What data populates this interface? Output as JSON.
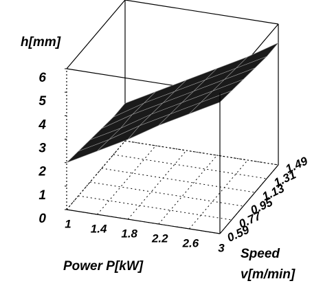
{
  "chart_data": {
    "type": "surface",
    "xlabel": "Power P[kW]",
    "ylabel": [
      "Speed",
      "v[m/min]"
    ],
    "zlabel": "h[mm]",
    "x": [
      1,
      1.4,
      1.8,
      2.2,
      2.6,
      3
    ],
    "y": [
      0.59,
      0.77,
      0.95,
      1.13,
      1.31,
      1.49
    ],
    "z": [
      [
        2.0,
        2.7,
        3.4,
        4.2,
        4.9,
        5.6
      ],
      [
        1.9,
        2.6,
        3.4,
        4.1,
        4.8,
        5.5
      ],
      [
        1.8,
        2.5,
        3.3,
        4.0,
        4.7,
        5.4
      ],
      [
        1.7,
        2.5,
        3.2,
        3.9,
        4.6,
        5.3
      ],
      [
        1.6,
        2.4,
        3.1,
        3.8,
        4.5,
        5.2
      ],
      [
        1.6,
        2.3,
        3.0,
        3.7,
        4.4,
        5.2
      ]
    ],
    "xlim": [
      1,
      3
    ],
    "ylim": [
      0.59,
      1.49
    ],
    "zlim": [
      0,
      6
    ],
    "xticks": [
      1,
      1.4,
      1.8,
      2.2,
      2.6,
      3
    ],
    "yticks": [
      0.59,
      0.77,
      0.95,
      1.13,
      1.31,
      1.49
    ],
    "zticks": [
      0,
      1,
      2,
      3,
      4,
      5,
      6
    ],
    "color": "#1a1a1a",
    "grid": true
  }
}
